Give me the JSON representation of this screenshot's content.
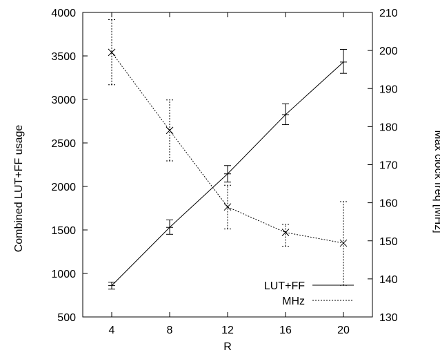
{
  "chart_data": {
    "type": "line",
    "xlabel": "R",
    "ylabel_left": "Combined LUT+FF usage",
    "ylabel_right": "Max clock freq [MHz]",
    "x": [
      4,
      8,
      12,
      16,
      20
    ],
    "xlim": [
      2,
      22
    ],
    "ylim_left": [
      500,
      4000
    ],
    "ylim_right": [
      130,
      210
    ],
    "xticks": [
      "4",
      "8",
      "12",
      "16",
      "20"
    ],
    "yticks_left": [
      "500",
      "1000",
      "1500",
      "2000",
      "2500",
      "3000",
      "3500",
      "4000"
    ],
    "yticks_right": [
      "130",
      "140",
      "150",
      "160",
      "170",
      "180",
      "190",
      "200",
      "210"
    ],
    "grid": false,
    "legend_position": "bottom-right",
    "series": [
      {
        "name": "LUT+FF",
        "axis": "left",
        "marker": "plus",
        "line_style": "solid",
        "values": [
          860,
          1530,
          2145,
          2825,
          3430
        ],
        "err_low": [
          820,
          1450,
          2050,
          2710,
          3300
        ],
        "err_high": [
          900,
          1615,
          2240,
          2950,
          3575
        ]
      },
      {
        "name": "MHz",
        "axis": "right",
        "marker": "cross",
        "line_style": "dotted",
        "values": [
          199.5,
          179.0,
          158.9,
          152.2,
          149.4
        ],
        "err_low": [
          191.0,
          171.0,
          153.1,
          148.6,
          138.3
        ],
        "err_high": [
          208.1,
          187.0,
          164.6,
          154.3,
          160.3
        ]
      }
    ]
  }
}
